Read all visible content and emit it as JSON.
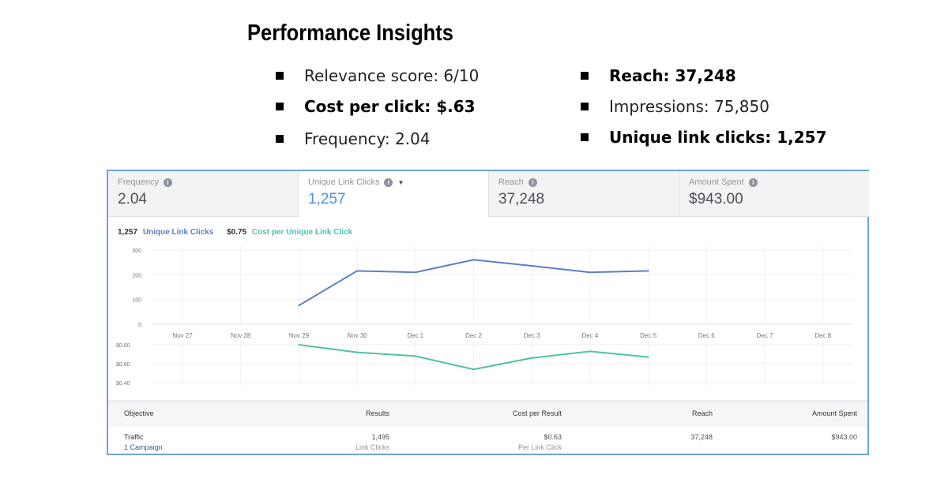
{
  "title": "Performance Insights",
  "insights_left": [
    "Relevance score: 6/10",
    "Cost per click: $.63",
    "Frequency: 2.04"
  ],
  "insights_right": [
    "Reach: 37,248",
    "Impressions: 75,850",
    "Unique link clicks: 1,257"
  ],
  "tabs": [
    {
      "label": "Frequency",
      "value": "2.04"
    },
    {
      "label": "Unique Link Clicks",
      "value": "1,257"
    },
    {
      "label": "Reach",
      "value": "37,248"
    },
    {
      "label": "Amount Spent",
      "value": "$943.00"
    }
  ],
  "legend": {
    "clicks_value": "1,257",
    "clicks_label": "Unique Link Clicks",
    "cost_value": "$0.75",
    "cost_label": "Cost per Unique Link Click"
  },
  "colors": {
    "clicks": "#5b7fc8",
    "cost": "#4fc2a6",
    "border": "#6fa3e0"
  },
  "chart_data": [
    {
      "type": "line",
      "title": "Unique Link Clicks",
      "x": [
        "Nov 27",
        "Nov 28",
        "Nov 29",
        "Nov 30",
        "Dec 1",
        "Dec 2",
        "Dec 3",
        "Dec 4",
        "Dec 5",
        "Dec 6",
        "Dec 7",
        "Dec 8"
      ],
      "values": [
        null,
        null,
        76,
        216,
        210,
        261,
        236,
        210,
        216,
        null,
        null,
        null
      ],
      "yticks": [
        "300",
        "200",
        "100",
        "0"
      ],
      "ylim": [
        0,
        300
      ]
    },
    {
      "type": "line",
      "title": "Cost per Unique Link Click",
      "values": [
        null,
        null,
        0.8,
        0.72,
        0.68,
        0.54,
        0.66,
        0.73,
        0.67,
        null,
        null,
        null
      ],
      "yticks": [
        "$0.80",
        "$0.60",
        "$0.40"
      ],
      "ylim": [
        0.4,
        0.8
      ]
    }
  ],
  "table": {
    "headers": [
      "Objective",
      "Results",
      "Cost per Result",
      "Reach",
      "Amount Spent"
    ],
    "row": {
      "objective": "Traffic",
      "campaigns": "1 Campaign",
      "results": "1,495",
      "results_sub": "Link Clicks",
      "cost": "$0.63",
      "cost_sub": "Per Link Click",
      "reach": "37,248",
      "spent": "$943.00"
    }
  }
}
